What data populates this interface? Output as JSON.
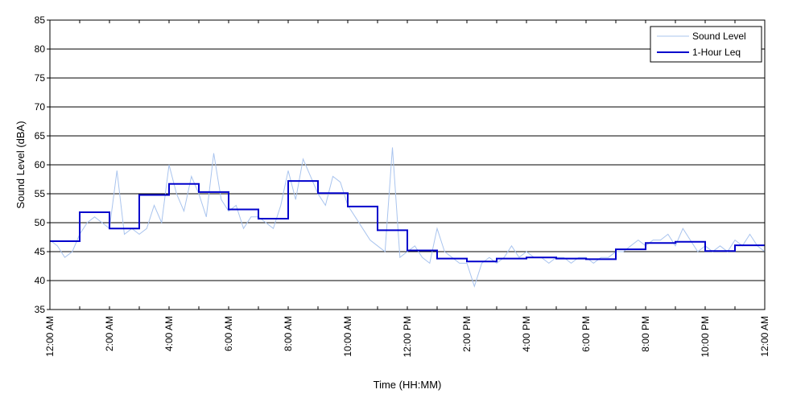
{
  "chart_data": {
    "type": "line",
    "title": "",
    "xlabel": "Time (HH:MM)",
    "ylabel": "Sound Level (dBA)",
    "ylim": [
      35,
      85
    ],
    "xlim_hours": [
      0,
      24
    ],
    "grid": "horizontal",
    "legend_position": "top-right",
    "yticks": [
      35,
      40,
      45,
      50,
      55,
      60,
      65,
      70,
      75,
      80,
      85
    ],
    "xticks": [
      {
        "hour": 0,
        "label": "12:00 AM"
      },
      {
        "hour": 2,
        "label": "2:00 AM"
      },
      {
        "hour": 4,
        "label": "4:00 AM"
      },
      {
        "hour": 6,
        "label": "6:00 AM"
      },
      {
        "hour": 8,
        "label": "8:00 AM"
      },
      {
        "hour": 10,
        "label": "10:00 AM"
      },
      {
        "hour": 12,
        "label": "12:00 PM"
      },
      {
        "hour": 14,
        "label": "2:00 PM"
      },
      {
        "hour": 16,
        "label": "4:00 PM"
      },
      {
        "hour": 18,
        "label": "6:00 PM"
      },
      {
        "hour": 20,
        "label": "8:00 PM"
      },
      {
        "hour": 22,
        "label": "10:00 PM"
      },
      {
        "hour": 24,
        "label": "12:00 AM"
      }
    ],
    "series": [
      {
        "name": "Sound Level",
        "color": "#a9c4ee",
        "style": "thin-line",
        "x_hours": [
          0,
          0.25,
          0.5,
          0.75,
          1.0,
          1.25,
          1.5,
          1.75,
          2.0,
          2.25,
          2.5,
          2.75,
          3.0,
          3.25,
          3.5,
          3.75,
          4.0,
          4.25,
          4.5,
          4.75,
          5.0,
          5.25,
          5.5,
          5.75,
          6.0,
          6.25,
          6.5,
          6.75,
          7.0,
          7.25,
          7.5,
          7.75,
          8.0,
          8.25,
          8.5,
          8.75,
          9.0,
          9.25,
          9.5,
          9.75,
          10.0,
          10.25,
          10.5,
          10.75,
          11.0,
          11.25,
          11.5,
          11.75,
          12.0,
          12.25,
          12.5,
          12.75,
          13.0,
          13.25,
          13.5,
          13.75,
          14.0,
          14.25,
          14.5,
          14.75,
          15.0,
          15.25,
          15.5,
          15.75,
          16.0,
          16.25,
          16.5,
          16.75,
          17.0,
          17.25,
          17.5,
          17.75,
          18.0,
          18.25,
          18.5,
          18.75,
          19.0,
          19.25,
          19.5,
          19.75,
          20.0,
          20.25,
          20.5,
          20.75,
          21.0,
          21.25,
          21.5,
          21.75,
          22.0,
          22.25,
          22.5,
          22.75,
          23.0,
          23.25,
          23.5,
          23.75,
          24.0
        ],
        "values": [
          47,
          46,
          44,
          45,
          48,
          50,
          51,
          50,
          49,
          59,
          48,
          49,
          48,
          49,
          53,
          50,
          60,
          55,
          52,
          58,
          55,
          51,
          62,
          54,
          52,
          53,
          49,
          51,
          51,
          50,
          49,
          53,
          59,
          54,
          61,
          58,
          55,
          53,
          58,
          57,
          53,
          51,
          49,
          47,
          46,
          45,
          63,
          44,
          45,
          46,
          44,
          43,
          49,
          45,
          44,
          43,
          43,
          39,
          43,
          44,
          43,
          44,
          46,
          44,
          45,
          44,
          44,
          43,
          44,
          44,
          43,
          44,
          44,
          43,
          44,
          44,
          45,
          45,
          46,
          47,
          46,
          47,
          47,
          48,
          46,
          49,
          47,
          45,
          46,
          45,
          46,
          45,
          47,
          46,
          48,
          46,
          45
        ]
      },
      {
        "name": "1-Hour Leq",
        "color": "#0000cc",
        "style": "step",
        "hours": [
          0,
          1,
          2,
          3,
          4,
          5,
          6,
          7,
          8,
          9,
          10,
          11,
          12,
          13,
          14,
          15,
          16,
          17,
          18,
          19,
          20,
          21,
          22,
          23
        ],
        "values": [
          46.8,
          51.8,
          49.0,
          54.8,
          56.7,
          55.3,
          52.3,
          50.7,
          57.2,
          55.1,
          52.8,
          48.7,
          45.2,
          43.8,
          43.3,
          43.8,
          44.0,
          43.8,
          43.7,
          45.4,
          46.5,
          46.7,
          45.1,
          46.1
        ]
      }
    ]
  }
}
